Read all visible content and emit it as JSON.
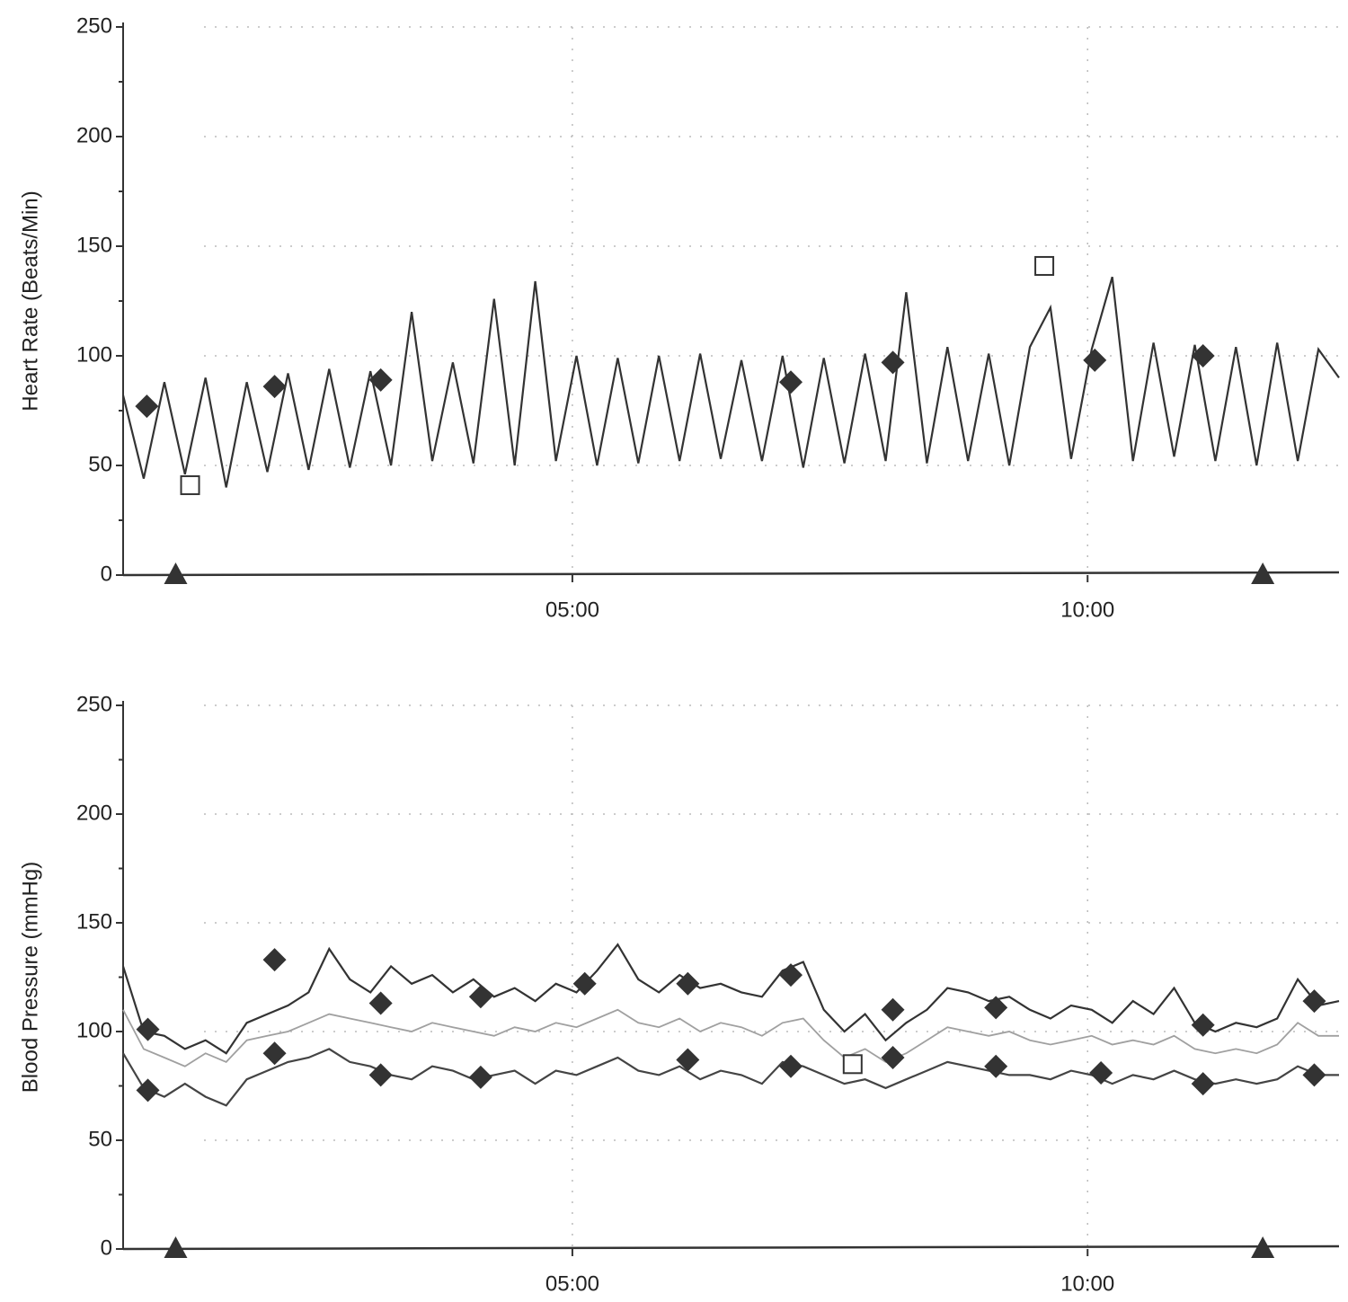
{
  "chart_data": [
    {
      "type": "line",
      "y_label": "Heart Rate (Beats/Min)",
      "xlim": [
        0.64,
        12.44
      ],
      "xticks": [
        {
          "value": 5,
          "label": "05:00"
        },
        {
          "value": 10,
          "label": "10:00"
        }
      ],
      "ylim": [
        0,
        250
      ],
      "yticks": [
        0,
        50,
        100,
        150,
        200,
        250
      ],
      "yticks_minor": [
        25,
        75,
        125,
        175,
        225
      ],
      "grid": true,
      "x": [
        0.64,
        0.84,
        1.04,
        1.24,
        1.44,
        1.64,
        1.84,
        2.04,
        2.24,
        2.44,
        2.64,
        2.84,
        3.04,
        3.24,
        3.44,
        3.64,
        3.84,
        4.04,
        4.24,
        4.44,
        4.64,
        4.84,
        5.04,
        5.24,
        5.44,
        5.64,
        5.84,
        6.04,
        6.24,
        6.44,
        6.64,
        6.84,
        7.04,
        7.24,
        7.44,
        7.64,
        7.84,
        8.04,
        8.24,
        8.44,
        8.64,
        8.84,
        9.04,
        9.24,
        9.44,
        9.64,
        9.84,
        10.04,
        10.24,
        10.44,
        10.64,
        10.84,
        11.04,
        11.24,
        11.44,
        11.64,
        11.84,
        12.04,
        12.24,
        12.44
      ],
      "series": [
        {
          "color": "#333333",
          "values": [
            82,
            44,
            88,
            46,
            90,
            40,
            88,
            47,
            92,
            48,
            94,
            49,
            93,
            50,
            120,
            52,
            97,
            51,
            126,
            50,
            134,
            52,
            100,
            50,
            99,
            51,
            100,
            52,
            101,
            53,
            98,
            52,
            100,
            49,
            99,
            51,
            101,
            52,
            129,
            51,
            104,
            52,
            101,
            50,
            104,
            122,
            53,
            103,
            136,
            52,
            106,
            54,
            105,
            52,
            104,
            50,
            106,
            52,
            103,
            90
          ]
        }
      ],
      "diamonds": [
        {
          "x": 0.87,
          "y": 77
        },
        {
          "x": 2.11,
          "y": 86
        },
        {
          "x": 3.14,
          "y": 89
        },
        {
          "x": 7.12,
          "y": 88
        },
        {
          "x": 8.11,
          "y": 97
        },
        {
          "x": 10.07,
          "y": 98
        },
        {
          "x": 11.12,
          "y": 100
        }
      ],
      "squares": [
        {
          "x": 1.29,
          "y": 41
        },
        {
          "x": 9.58,
          "y": 141
        }
      ],
      "triangles": [
        1.15,
        11.7
      ]
    },
    {
      "type": "line",
      "y_label": "Blood Pressure (mmHg)",
      "xlim": [
        0.64,
        12.44
      ],
      "xticks": [
        {
          "value": 5,
          "label": "05:00"
        },
        {
          "value": 10,
          "label": "10:00"
        }
      ],
      "ylim": [
        0,
        250
      ],
      "yticks": [
        0,
        50,
        100,
        150,
        200,
        250
      ],
      "yticks_minor": [
        25,
        75,
        125,
        175,
        225
      ],
      "grid": true,
      "x": [
        0.64,
        0.84,
        1.04,
        1.24,
        1.44,
        1.64,
        1.84,
        2.04,
        2.24,
        2.44,
        2.64,
        2.84,
        3.04,
        3.24,
        3.44,
        3.64,
        3.84,
        4.04,
        4.24,
        4.44,
        4.64,
        4.84,
        5.04,
        5.24,
        5.44,
        5.64,
        5.84,
        6.04,
        6.24,
        6.44,
        6.64,
        6.84,
        7.04,
        7.24,
        7.44,
        7.64,
        7.84,
        8.04,
        8.24,
        8.44,
        8.64,
        8.84,
        9.04,
        9.24,
        9.44,
        9.64,
        9.84,
        10.04,
        10.24,
        10.44,
        10.64,
        10.84,
        11.04,
        11.24,
        11.44,
        11.64,
        11.84,
        12.04,
        12.24,
        12.44
      ],
      "series": [
        {
          "color": "#333333",
          "values": [
            130,
            100,
            98,
            92,
            96,
            90,
            104,
            108,
            112,
            118,
            138,
            124,
            118,
            130,
            122,
            126,
            118,
            124,
            116,
            120,
            114,
            122,
            118,
            128,
            140,
            124,
            118,
            126,
            120,
            122,
            118,
            116,
            128,
            132,
            110,
            100,
            108,
            96,
            104,
            110,
            120,
            118,
            114,
            116,
            110,
            106,
            112,
            110,
            104,
            114,
            108,
            120,
            104,
            100,
            104,
            102,
            106,
            124,
            112,
            114
          ]
        },
        {
          "color": "#a0a0a0",
          "values": [
            110,
            92,
            88,
            84,
            90,
            86,
            96,
            98,
            100,
            104,
            108,
            106,
            104,
            102,
            100,
            104,
            102,
            100,
            98,
            102,
            100,
            104,
            102,
            106,
            110,
            104,
            102,
            106,
            100,
            104,
            102,
            98,
            104,
            106,
            96,
            88,
            92,
            86,
            90,
            96,
            102,
            100,
            98,
            100,
            96,
            94,
            96,
            98,
            94,
            96,
            94,
            98,
            92,
            90,
            92,
            90,
            94,
            104,
            98,
            98
          ]
        },
        {
          "color": "#444444",
          "values": [
            90,
            74,
            70,
            76,
            70,
            66,
            78,
            82,
            86,
            88,
            92,
            86,
            84,
            80,
            78,
            84,
            82,
            78,
            80,
            82,
            76,
            82,
            80,
            84,
            88,
            82,
            80,
            84,
            78,
            82,
            80,
            76,
            86,
            84,
            80,
            76,
            78,
            74,
            78,
            82,
            86,
            84,
            82,
            80,
            80,
            78,
            82,
            80,
            76,
            80,
            78,
            82,
            78,
            76,
            78,
            76,
            78,
            84,
            80,
            80
          ]
        }
      ],
      "diamonds": [
        {
          "x": 0.88,
          "y": 101
        },
        {
          "x": 0.88,
          "y": 73
        },
        {
          "x": 2.11,
          "y": 133
        },
        {
          "x": 2.11,
          "y": 90
        },
        {
          "x": 3.14,
          "y": 113
        },
        {
          "x": 3.14,
          "y": 80
        },
        {
          "x": 4.11,
          "y": 116
        },
        {
          "x": 4.11,
          "y": 79
        },
        {
          "x": 5.12,
          "y": 122
        },
        {
          "x": 6.12,
          "y": 122
        },
        {
          "x": 6.12,
          "y": 87
        },
        {
          "x": 7.12,
          "y": 126
        },
        {
          "x": 7.12,
          "y": 84
        },
        {
          "x": 8.11,
          "y": 110
        },
        {
          "x": 8.11,
          "y": 88
        },
        {
          "x": 9.11,
          "y": 111
        },
        {
          "x": 9.11,
          "y": 84
        },
        {
          "x": 10.13,
          "y": 81
        },
        {
          "x": 11.12,
          "y": 103
        },
        {
          "x": 11.12,
          "y": 76
        },
        {
          "x": 12.2,
          "y": 114
        },
        {
          "x": 12.2,
          "y": 80
        }
      ],
      "squares": [
        {
          "x": 7.72,
          "y": 85
        }
      ],
      "triangles": [
        1.15,
        11.7
      ]
    }
  ]
}
